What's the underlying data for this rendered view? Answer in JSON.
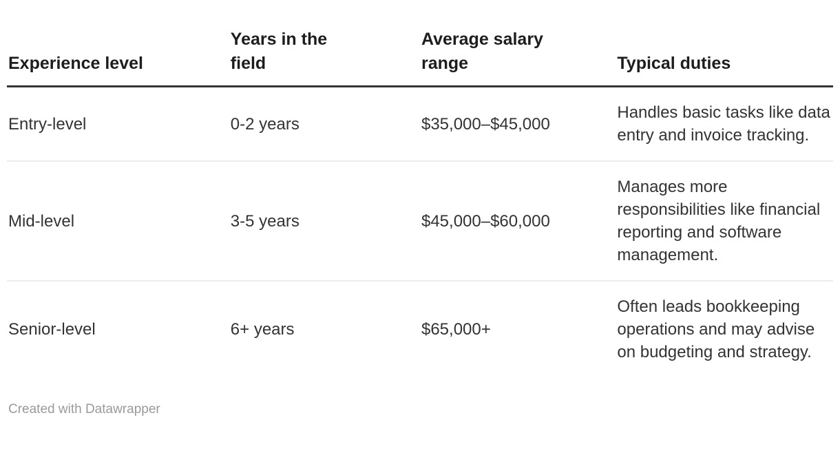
{
  "chart_data": {
    "type": "table",
    "columns": [
      "Experience level",
      "Years in the field",
      "Average salary range",
      "Typical duties"
    ],
    "rows": [
      [
        "Entry-level",
        "0-2 years",
        "$35,000–$45,000",
        "Handles basic tasks like data entry and invoice tracking."
      ],
      [
        "Mid-level",
        "3-5 years",
        "$45,000–$60,000",
        "Manages more responsibilities like financial reporting and software management."
      ],
      [
        "Senior-level",
        "6+ years",
        "$65,000+",
        "Often leads bookkeeping operations and may advise on budgeting and strategy."
      ]
    ],
    "title": "",
    "legend_position": "none",
    "grid": "horizontal-row-dividers"
  },
  "footer": {
    "attribution": "Created with Datawrapper"
  },
  "colors": {
    "background": "#ffffff",
    "header_text": "#1d1d1d",
    "body_text": "#333333",
    "footer_text": "#9a9a9a",
    "header_rule": "#333333",
    "row_divider": "#ececec"
  }
}
